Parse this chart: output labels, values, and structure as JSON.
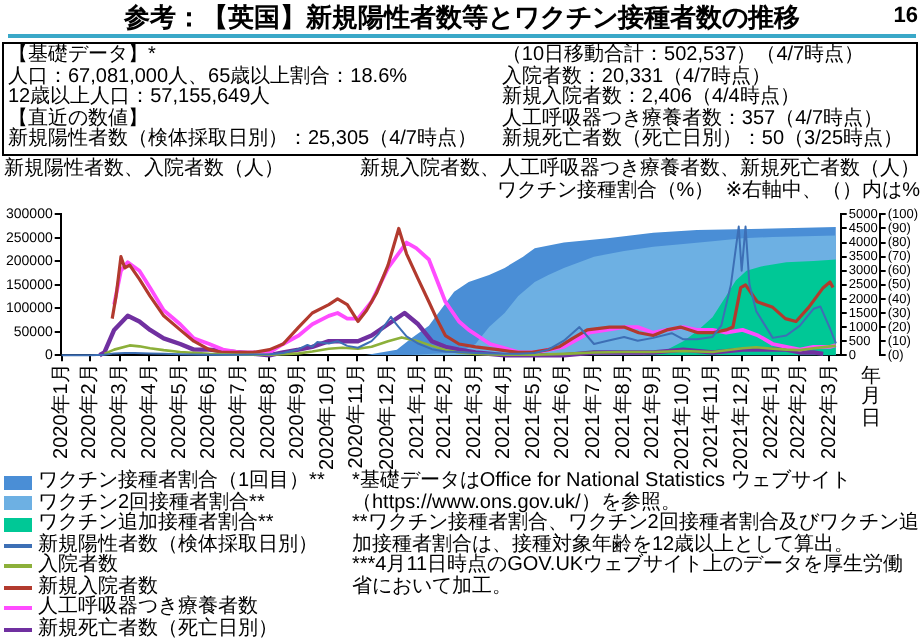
{
  "chart_data": {
    "type": "line",
    "title": "参考：【英国】新規陽性者数等とワクチン接種者数の推移",
    "ylabel": "新規陽性者数、入院者数（人）",
    "y2label": "新規入院者数、人工呼吸器つき療養者数、新規死亡者数（人）",
    "y3label": "ワクチン接種割合（%）",
    "xlabel": "年月日",
    "annotations": [
      "【基礎データ】*",
      "人口：67,081,000人、65歳以上割合：18.6%",
      "12歳以上人口：57,155,649人",
      "【直近の数値】",
      "新規陽性者数（検体採取日別）：25,305（4/7時点）",
      "（10日移動合計：502,537）（4/7時点）",
      "入院者数：20,331（4/7時点）",
      "新規入院者数：2,406（4/4時点）",
      "人工呼吸器つき療養者数：357（4/7時点）",
      "新規死亡者数（死亡日別）：50（3/25時点）",
      "※右軸中、（）内は%",
      "*基礎データはOffice for National Statistics ウェブサイト（https://www.ons.gov.uk/）を参照。",
      "**ワクチン接種者割合、ワクチン2回接種者割合及びワクチン追加接種者割合は、接種対象年齢を12歳以上として算出。",
      "***4月11日時点のGOV.UKウェブサイト上のデータを厚生労働省において加工。",
      "16"
    ],
    "legend": "bottom left",
    "grid": false,
    "xlim": [
      "2020-01-30",
      "2022-04-12"
    ],
    "xticks": [
      {
        "value": "2020-01-31",
        "label": "2020年1月"
      },
      {
        "value": "2020-02-29",
        "label": "2020年2月"
      },
      {
        "value": "2020-03-31",
        "label": "2020年3月"
      },
      {
        "value": "2020-04-30",
        "label": "2020年4月"
      },
      {
        "value": "2020-05-31",
        "label": "2020年5月"
      },
      {
        "value": "2020-06-30",
        "label": "2020年6月"
      },
      {
        "value": "2020-07-31",
        "label": "2020年7月"
      },
      {
        "value": "2020-08-31",
        "label": "2020年8月"
      },
      {
        "value": "2020-09-30",
        "label": "2020年9月"
      },
      {
        "value": "2020-10-31",
        "label": "2020年10月"
      },
      {
        "value": "2020-11-30",
        "label": "2020年11月"
      },
      {
        "value": "2020-12-31",
        "label": "2020年12月"
      },
      {
        "value": "2021-01-31",
        "label": "2021年1月"
      },
      {
        "value": "2021-02-28",
        "label": "2021年2月"
      },
      {
        "value": "2021-03-31",
        "label": "2021年3月"
      },
      {
        "value": "2021-04-30",
        "label": "2021年4月"
      },
      {
        "value": "2021-05-31",
        "label": "2021年5月"
      },
      {
        "value": "2021-06-30",
        "label": "2021年6月"
      },
      {
        "value": "2021-07-31",
        "label": "2021年7月"
      },
      {
        "value": "2021-08-31",
        "label": "2021年8月"
      },
      {
        "value": "2021-09-30",
        "label": "2021年9月"
      },
      {
        "value": "2021-10-31",
        "label": "2021年10月"
      },
      {
        "value": "2021-11-30",
        "label": "2021年11月"
      },
      {
        "value": "2021-12-31",
        "label": "2021年12月"
      },
      {
        "value": "2022-01-31",
        "label": "2022年1月"
      },
      {
        "value": "2022-02-28",
        "label": "2022年2月"
      },
      {
        "value": "2022-03-31",
        "label": "2022年3月"
      }
    ],
    "ylim": [
      0,
      300000
    ],
    "yticks": [
      0,
      50000,
      100000,
      150000,
      200000,
      250000,
      300000
    ],
    "y2lim": [
      0,
      5000
    ],
    "y2ticks": [
      0,
      500,
      1000,
      1500,
      2000,
      2500,
      3000,
      3500,
      4000,
      4500,
      5000
    ],
    "y3lim": [
      0,
      100
    ],
    "y3ticks": [
      {
        "value": 0,
        "label": "(0)"
      },
      {
        "value": 10,
        "label": "(10)"
      },
      {
        "value": 20,
        "label": "(20)"
      },
      {
        "value": 30,
        "label": "(30)"
      },
      {
        "value": 40,
        "label": "(40)"
      },
      {
        "value": 50,
        "label": "(50)"
      },
      {
        "value": 60,
        "label": "(60)"
      },
      {
        "value": 70,
        "label": "(70)"
      },
      {
        "value": 80,
        "label": "(80)"
      },
      {
        "value": 90,
        "label": "(90)"
      },
      {
        "value": 100,
        "label": "(100)"
      }
    ],
    "series": [
      {
        "name": "ワクチン接種者割合（1回目）**",
        "type": "area",
        "axis": "y3",
        "color": "#4a8ed6",
        "x": [
          "2020-12-08",
          "2021-01-10",
          "2021-01-25",
          "2021-02-12",
          "2021-02-25",
          "2021-03-10",
          "2021-03-25",
          "2021-04-15",
          "2021-05-01",
          "2021-05-20",
          "2021-06-01",
          "2021-07-01",
          "2021-08-15",
          "2021-10-01",
          "2021-11-15",
          "2022-02-01",
          "2022-04-07"
        ],
        "values": [
          0,
          4,
          12,
          21,
          33,
          45,
          52,
          57,
          62,
          70,
          76,
          80,
          83,
          87,
          89,
          90,
          91
        ]
      },
      {
        "name": "ワクチン2回接種者割合**",
        "type": "area",
        "axis": "y3",
        "color": "#6db0e3",
        "x": [
          "2021-01-20",
          "2021-02-15",
          "2021-03-15",
          "2021-04-01",
          "2021-04-15",
          "2021-05-01",
          "2021-05-15",
          "2021-06-01",
          "2021-06-15",
          "2021-07-01",
          "2021-08-01",
          "2021-09-01",
          "2021-10-01",
          "2021-11-01",
          "2021-12-01",
          "2022-01-01",
          "2022-02-01",
          "2022-04-07"
        ],
        "values": [
          0,
          1,
          2,
          8,
          20,
          30,
          42,
          52,
          57,
          62,
          70,
          74,
          77,
          79,
          81,
          83,
          84,
          85
        ]
      },
      {
        "name": "ワクチン追加接種者割合**",
        "type": "area",
        "axis": "y3",
        "color": "#00c896",
        "x": [
          "2021-09-20",
          "2021-10-15",
          "2021-11-01",
          "2021-11-15",
          "2021-12-01",
          "2021-12-15",
          "2021-12-25",
          "2022-01-05",
          "2022-01-20",
          "2022-02-15",
          "2022-03-15",
          "2022-04-07"
        ],
        "values": [
          0,
          4,
          10,
          17,
          27,
          42,
          53,
          60,
          63,
          66,
          67,
          68
        ]
      },
      {
        "name": "新規陽性者数（検体採取日別）",
        "type": "line",
        "axis": "y",
        "color": "#3d6fb5",
        "x": [
          "2020-01-31",
          "2020-02-29",
          "2020-03-15",
          "2020-03-25",
          "2020-04-05",
          "2020-04-15",
          "2020-05-01",
          "2020-05-15",
          "2020-06-01",
          "2020-07-01",
          "2020-08-01",
          "2020-09-01",
          "2020-09-15",
          "2020-10-01",
          "2020-10-10",
          "2020-10-15",
          "2020-10-20",
          "2020-11-01",
          "2020-11-10",
          "2020-11-20",
          "2020-12-01",
          "2020-12-10",
          "2020-12-15",
          "2020-12-22",
          "2020-12-29",
          "2021-01-04",
          "2021-01-08",
          "2021-01-12",
          "2021-01-20",
          "2021-02-01",
          "2021-02-15",
          "2021-03-01",
          "2021-04-01",
          "2021-05-01",
          "2021-05-15",
          "2021-06-01",
          "2021-06-15",
          "2021-07-01",
          "2021-07-17",
          "2021-08-01",
          "2021-08-15",
          "2021-09-01",
          "2021-09-15",
          "2021-10-01",
          "2021-10-20",
          "2021-11-01",
          "2021-11-15",
          "2021-12-01",
          "2021-12-10",
          "2021-12-20",
          "2021-12-28",
          "2021-12-31",
          "2022-01-04",
          "2022-01-08",
          "2022-01-15",
          "2022-02-01",
          "2022-02-15",
          "2022-03-01",
          "2022-03-15",
          "2022-03-22",
          "2022-04-01",
          "2022-04-07"
        ],
        "values": [
          0,
          0,
          1000,
          4000,
          5000,
          5000,
          4000,
          3000,
          2000,
          1000,
          1000,
          2000,
          5000,
          13000,
          22000,
          18000,
          28000,
          25000,
          30000,
          20000,
          16000,
          25000,
          30000,
          45000,
          65000,
          82000,
          70000,
          60000,
          40000,
          25000,
          13000,
          8000,
          5000,
          3000,
          3000,
          5000,
          12000,
          31000,
          60000,
          24000,
          31000,
          39000,
          31000,
          37000,
          47000,
          34000,
          34000,
          39000,
          63000,
          151000,
          274000,
          180000,
          274000,
          151000,
          94000,
          37000,
          42000,
          63000,
          99000,
          104000,
          57000,
          25305
        ]
      },
      {
        "name": "入院者数",
        "type": "line",
        "axis": "y",
        "color": "#8cb03a",
        "x": [
          "2020-03-15",
          "2020-03-25",
          "2020-04-10",
          "2020-04-20",
          "2020-05-01",
          "2020-05-15",
          "2020-06-01",
          "2020-07-01",
          "2020-08-01",
          "2020-09-01",
          "2020-09-15",
          "2020-10-01",
          "2020-10-15",
          "2020-11-01",
          "2020-11-15",
          "2020-12-01",
          "2020-12-15",
          "2021-01-01",
          "2021-01-15",
          "2021-02-01",
          "2021-02-15",
          "2021-03-01",
          "2021-03-15",
          "2021-04-01",
          "2021-05-01",
          "2021-06-01",
          "2021-07-01",
          "2021-08-01",
          "2021-09-01",
          "2021-10-01",
          "2021-11-01",
          "2021-12-01",
          "2022-01-01",
          "2022-01-15",
          "2022-02-01",
          "2022-02-15",
          "2022-03-01",
          "2022-03-15",
          "2022-04-01",
          "2022-04-07"
        ],
        "values": [
          3000,
          12000,
          21000,
          19000,
          15000,
          11000,
          7000,
          3000,
          1000,
          1000,
          2000,
          4000,
          8000,
          14000,
          16000,
          14000,
          18000,
          30000,
          38000,
          30000,
          20000,
          11000,
          6000,
          3000,
          1000,
          1000,
          3000,
          6000,
          7000,
          7000,
          9000,
          7000,
          15000,
          17000,
          14000,
          12000,
          11000,
          15000,
          19000,
          20331
        ]
      },
      {
        "name": "新規入院者数",
        "type": "line",
        "axis": "y2",
        "color": "#b23a2e",
        "x": [
          "2020-03-23",
          "2020-03-27",
          "2020-04-01",
          "2020-04-05",
          "2020-04-10",
          "2020-04-20",
          "2020-05-01",
          "2020-05-15",
          "2020-06-01",
          "2020-06-15",
          "2020-07-01",
          "2020-07-15",
          "2020-08-01",
          "2020-08-15",
          "2020-09-01",
          "2020-09-15",
          "2020-10-01",
          "2020-10-15",
          "2020-11-01",
          "2020-11-10",
          "2020-11-20",
          "2020-12-01",
          "2020-12-10",
          "2020-12-20",
          "2021-01-01",
          "2021-01-12",
          "2021-01-20",
          "2021-02-01",
          "2021-02-12",
          "2021-02-20",
          "2021-03-01",
          "2021-03-15",
          "2021-04-01",
          "2021-04-24",
          "2021-05-15",
          "2021-05-29",
          "2021-06-15",
          "2021-06-26",
          "2021-07-10",
          "2021-07-25",
          "2021-08-17",
          "2021-09-01",
          "2021-09-16",
          "2021-10-01",
          "2021-10-15",
          "2021-10-29",
          "2021-11-16",
          "2021-12-01",
          "2021-12-15",
          "2021-12-22",
          "2021-12-30",
          "2022-01-04",
          "2022-01-16",
          "2022-02-01",
          "2022-02-14",
          "2022-02-25",
          "2022-03-10",
          "2022-03-25",
          "2022-04-01",
          "2022-04-04"
        ],
        "values": [
          1300,
          2100,
          3500,
          3100,
          3200,
          2700,
          2100,
          1400,
          900,
          500,
          200,
          100,
          100,
          100,
          200,
          400,
          1000,
          1500,
          1800,
          2000,
          1800,
          1200,
          1600,
          2200,
          3200,
          4500,
          3600,
          2700,
          1900,
          1300,
          700,
          400,
          300,
          200,
          100,
          100,
          200,
          300,
          600,
          900,
          1000,
          1000,
          800,
          700,
          900,
          1000,
          800,
          800,
          900,
          1000,
          2400,
          2500,
          1900,
          1700,
          1300,
          1200,
          1700,
          2400,
          2600,
          2406
        ]
      },
      {
        "name": "人工呼吸器つき療養者数",
        "type": "line",
        "axis": "y2",
        "color": "#ff4cff",
        "x": [
          "2020-03-25",
          "2020-04-01",
          "2020-04-08",
          "2020-04-20",
          "2020-05-01",
          "2020-05-15",
          "2020-06-01",
          "2020-06-15",
          "2020-07-01",
          "2020-07-15",
          "2020-08-01",
          "2020-08-15",
          "2020-09-01",
          "2020-09-15",
          "2020-10-01",
          "2020-10-15",
          "2020-11-01",
          "2020-11-10",
          "2020-11-20",
          "2020-12-01",
          "2020-12-15",
          "2021-01-01",
          "2021-01-20",
          "2021-01-30",
          "2021-02-12",
          "2021-03-01",
          "2021-03-15",
          "2021-03-25",
          "2021-04-16",
          "2021-05-16",
          "2021-06-01",
          "2021-07-01",
          "2021-07-27",
          "2021-09-01",
          "2021-09-15",
          "2021-10-01",
          "2021-10-15",
          "2021-11-01",
          "2021-11-15",
          "2021-12-01",
          "2021-12-15",
          "2022-01-01",
          "2022-01-17",
          "2022-02-01",
          "2022-02-15",
          "2022-03-01",
          "2022-03-15",
          "2022-04-01",
          "2022-04-07"
        ],
        "values": [
          1800,
          3000,
          3300,
          3000,
          2400,
          1600,
          1100,
          600,
          400,
          200,
          100,
          100,
          100,
          400,
          700,
          1100,
          1400,
          1500,
          1300,
          1300,
          1900,
          3100,
          4000,
          3800,
          3400,
          1900,
          1200,
          900,
          400,
          100,
          100,
          300,
          800,
          1000,
          1000,
          800,
          900,
          1000,
          900,
          900,
          800,
          900,
          700,
          400,
          300,
          200,
          300,
          300,
          357
        ]
      },
      {
        "name": "新規死亡者数（死亡日別）",
        "type": "line",
        "axis": "y2",
        "color": "#7030a0",
        "x": [
          "2020-03-10",
          "2020-03-15",
          "2020-03-25",
          "2020-04-08",
          "2020-04-20",
          "2020-05-01",
          "2020-05-15",
          "2020-06-01",
          "2020-06-15",
          "2020-07-01",
          "2020-08-01",
          "2020-09-01",
          "2020-09-15",
          "2020-10-01",
          "2020-10-15",
          "2020-11-01",
          "2020-11-15",
          "2020-12-01",
          "2020-12-15",
          "2021-01-01",
          "2021-01-18",
          "2021-02-01",
          "2021-02-15",
          "2021-03-01",
          "2021-03-15",
          "2021-04-01",
          "2021-05-01",
          "2021-06-01",
          "2021-07-01",
          "2021-08-01",
          "2021-09-01",
          "2021-10-01",
          "2021-11-01",
          "2021-12-01",
          "2022-01-01",
          "2022-01-15",
          "2022-02-01",
          "2022-02-15",
          "2022-03-01",
          "2022-03-15",
          "2022-03-25"
        ],
        "values": [
          0,
          100,
          900,
          1400,
          1200,
          900,
          600,
          400,
          200,
          200,
          100,
          0,
          100,
          200,
          300,
          500,
          500,
          500,
          700,
          1100,
          1500,
          1100,
          500,
          300,
          200,
          100,
          0,
          0,
          0,
          100,
          100,
          100,
          200,
          100,
          200,
          200,
          200,
          200,
          100,
          100,
          50
        ]
      }
    ]
  }
}
